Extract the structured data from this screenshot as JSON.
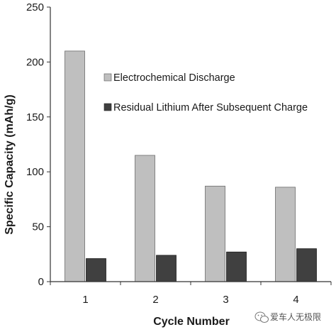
{
  "chart_data": {
    "type": "bar",
    "categories": [
      "1",
      "2",
      "3",
      "4"
    ],
    "series": [
      {
        "name": "Electrochemical Discharge",
        "values": [
          210,
          115,
          87,
          86
        ],
        "color": "#bfbfbf"
      },
      {
        "name": "Residual Lithium After Subsequent Charge",
        "values": [
          21,
          24,
          27,
          30
        ],
        "color": "#404040"
      }
    ],
    "xlabel": "Cycle Number",
    "ylabel": "Specific Capacity (mAh/g)",
    "ylim": [
      0,
      250
    ],
    "yticks": [
      0,
      50,
      100,
      150,
      200,
      250
    ],
    "grid": false,
    "legend_position": "top-right"
  },
  "watermark": {
    "text": "爱车人无极限",
    "icon": "wechat-icon"
  }
}
